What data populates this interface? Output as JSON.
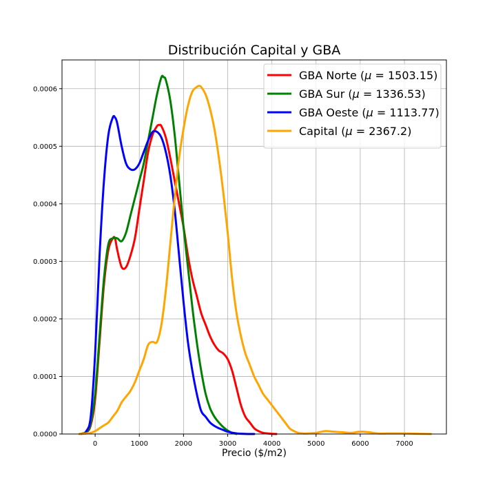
{
  "chart_data": {
    "type": "line",
    "title": "Distribución Capital y GBA",
    "xlabel": "Precio ($/m2)",
    "ylabel": "",
    "xlim": [
      -750,
      7950
    ],
    "ylim": [
      0,
      0.00065
    ],
    "grid": true,
    "legend_position": "top-right",
    "x_ticks": [
      0,
      1000,
      2000,
      3000,
      4000,
      5000,
      6000,
      7000
    ],
    "x_tick_labels": [
      "0",
      "1000",
      "2000",
      "3000",
      "4000",
      "5000",
      "6000",
      "7000"
    ],
    "y_ticks": [
      0,
      0.0001,
      0.0002,
      0.0003,
      0.0004,
      0.0005,
      0.0006
    ],
    "y_tick_labels": [
      "0.0000",
      "0.0001",
      "0.0002",
      "0.0003",
      "0.0004",
      "0.0005",
      "0.0006"
    ],
    "series": [
      {
        "name": "GBA Norte",
        "mu": "1503.15",
        "color": "#ff0000",
        "x": [
          -350,
          -200,
          -100,
          0,
          100,
          200,
          300,
          400,
          450,
          500,
          600,
          700,
          800,
          900,
          1000,
          1100,
          1200,
          1300,
          1400,
          1450,
          1500,
          1600,
          1700,
          1800,
          1900,
          2000,
          2100,
          2200,
          2300,
          2400,
          2500,
          2600,
          2700,
          2800,
          2900,
          3000,
          3100,
          3200,
          3300,
          3400,
          3500,
          3600,
          3700,
          3800,
          3900,
          4000,
          4100
        ],
        "y": [
          0,
          3e-06,
          1.5e-05,
          6e-05,
          0.00016,
          0.00026,
          0.00032,
          0.00034,
          0.00034,
          0.00032,
          0.00029,
          0.00029,
          0.00031,
          0.00034,
          0.00039,
          0.00044,
          0.00049,
          0.00052,
          0.000535,
          0.000537,
          0.000535,
          0.000515,
          0.00048,
          0.00044,
          0.0004,
          0.00036,
          0.00031,
          0.00027,
          0.00024,
          0.00021,
          0.00019,
          0.00017,
          0.000155,
          0.000145,
          0.00014,
          0.00013,
          0.00011,
          8e-05,
          5e-05,
          3e-05,
          2e-05,
          1e-05,
          5e-06,
          2e-06,
          1e-06,
          3e-07,
          0
        ]
      },
      {
        "name": "GBA Sur",
        "mu": "1336.53",
        "color": "#008000",
        "x": [
          -350,
          -200,
          -100,
          0,
          100,
          200,
          300,
          400,
          500,
          600,
          700,
          800,
          900,
          1000,
          1100,
          1200,
          1300,
          1400,
          1500,
          1550,
          1600,
          1700,
          1800,
          1900,
          2000,
          2100,
          2200,
          2300,
          2400,
          2500,
          2600,
          2700,
          2800,
          2900,
          3000,
          3100,
          3200
        ],
        "y": [
          0,
          3e-06,
          1.8e-05,
          7e-05,
          0.00017,
          0.00027,
          0.00033,
          0.00034,
          0.00034,
          0.000335,
          0.00035,
          0.00038,
          0.00041,
          0.00044,
          0.00047,
          0.00051,
          0.00055,
          0.00059,
          0.00062,
          0.00062,
          0.000615,
          0.00058,
          0.00052,
          0.00044,
          0.00036,
          0.00029,
          0.00022,
          0.00016,
          0.00011,
          7e-05,
          4.5e-05,
          3e-05,
          2e-05,
          1.2e-05,
          6e-06,
          2e-06,
          0
        ]
      },
      {
        "name": "GBA Oeste",
        "mu": "1113.77",
        "color": "#0000ff",
        "x": [
          -350,
          -300,
          -200,
          -100,
          0,
          100,
          200,
          300,
          400,
          450,
          500,
          600,
          700,
          800,
          900,
          1000,
          1100,
          1200,
          1300,
          1400,
          1500,
          1600,
          1700,
          1800,
          1900,
          2000,
          2100,
          2200,
          2300,
          2400,
          2500,
          2600,
          2700,
          2800,
          2900,
          3000,
          3200,
          3400,
          3600
        ],
        "y": [
          0,
          5e-07,
          5e-06,
          3e-05,
          0.00014,
          0.00031,
          0.00044,
          0.00052,
          0.00055,
          0.00055,
          0.00054,
          0.0005,
          0.00047,
          0.00046,
          0.00046,
          0.00047,
          0.00049,
          0.00051,
          0.000525,
          0.000525,
          0.000515,
          0.00049,
          0.00045,
          0.00039,
          0.00031,
          0.00023,
          0.00016,
          0.00011,
          7e-05,
          4e-05,
          3e-05,
          2e-05,
          1.4e-05,
          1e-05,
          7e-06,
          4e-06,
          1e-06,
          2e-07,
          0
        ]
      },
      {
        "name": "Capital",
        "mu": "2367.2",
        "color": "#ffa500",
        "x": [
          -350,
          -200,
          -100,
          0,
          100,
          200,
          300,
          400,
          500,
          600,
          700,
          800,
          900,
          1000,
          1100,
          1200,
          1300,
          1400,
          1500,
          1600,
          1700,
          1800,
          1900,
          2000,
          2100,
          2200,
          2300,
          2350,
          2400,
          2500,
          2600,
          2700,
          2800,
          2900,
          3000,
          3100,
          3200,
          3300,
          3400,
          3500,
          3600,
          3700,
          3800,
          3900,
          4000,
          4100,
          4200,
          4300,
          4400,
          4500,
          4600,
          4700,
          4800,
          5000,
          5200,
          5400,
          5600,
          5800,
          6000,
          6200,
          6400,
          6600,
          6800,
          7000,
          7300,
          7600
        ],
        "y": [
          0,
          1e-06,
          2e-06,
          5e-06,
          1e-05,
          1.5e-05,
          2e-05,
          3e-05,
          4e-05,
          5.5e-05,
          6.5e-05,
          7.5e-05,
          9e-05,
          0.00011,
          0.00013,
          0.000155,
          0.00016,
          0.00016,
          0.00019,
          0.00025,
          0.00033,
          0.00041,
          0.00048,
          0.00053,
          0.00057,
          0.000595,
          0.000603,
          0.000605,
          0.000603,
          0.00059,
          0.000565,
          0.00053,
          0.00048,
          0.00042,
          0.00035,
          0.00027,
          0.00021,
          0.00017,
          0.00014,
          0.00012,
          0.0001,
          8.5e-05,
          7e-05,
          6e-05,
          5e-05,
          4e-05,
          3e-05,
          2e-05,
          1e-05,
          5e-06,
          2e-06,
          1e-06,
          1e-06,
          2e-06,
          5e-06,
          4e-06,
          3e-06,
          2e-06,
          4e-06,
          3e-06,
          1e-06,
          1e-06,
          1e-06,
          1e-06,
          5e-07,
          0
        ]
      }
    ]
  }
}
